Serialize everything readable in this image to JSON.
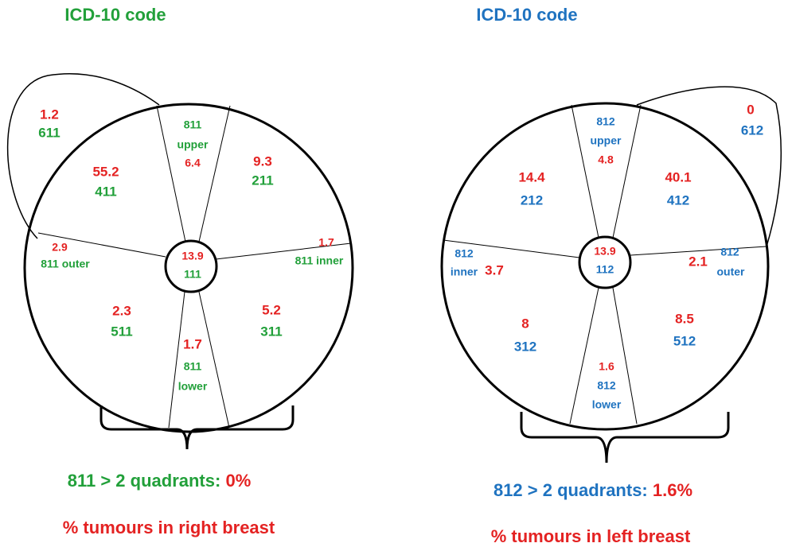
{
  "right_breast": {
    "title": "ICD-10 code",
    "tail": {
      "value": 1.2,
      "code": "611"
    },
    "upper_left": {
      "value": 55.2,
      "code": "411"
    },
    "upper": {
      "code": "811",
      "label": "upper",
      "value": 6.4
    },
    "upper_right": {
      "value": 9.3,
      "code": "211"
    },
    "left": {
      "value": 2.9,
      "label": "811 outer"
    },
    "center": {
      "value": 13.9,
      "code": "111"
    },
    "right": {
      "value": 1.7,
      "label": "811 inner"
    },
    "lower_left": {
      "value": 2.3,
      "code": "511"
    },
    "lower": {
      "value": 1.7,
      "code": "811",
      "label": "lower"
    },
    "lower_right": {
      "value": 5.2,
      "code": "311"
    },
    "summary_label": "811 > 2 quadrants:",
    "summary_value": "0%",
    "caption": "% tumours in right breast"
  },
  "left_breast": {
    "title": "ICD-10 code",
    "tail": {
      "value": 0,
      "code": "612"
    },
    "upper_left": {
      "value": 14.4,
      "code": "212"
    },
    "upper": {
      "code": "812",
      "label": "upper",
      "value": 4.8
    },
    "upper_right": {
      "value": 40.1,
      "code": "412"
    },
    "left": {
      "code": "812",
      "label": "inner",
      "value": 3.7
    },
    "center": {
      "value": 13.9,
      "code": "112"
    },
    "right": {
      "value": 2.1,
      "code": "812",
      "label": "outer"
    },
    "lower_left": {
      "value": 8,
      "code": "312"
    },
    "lower": {
      "value": 1.6,
      "code": "812",
      "label": "lower"
    },
    "lower_right": {
      "value": 8.5,
      "code": "512"
    },
    "summary_label": "812 > 2 quadrants:",
    "summary_value": "1.6%",
    "caption": "% tumours in left breast"
  }
}
